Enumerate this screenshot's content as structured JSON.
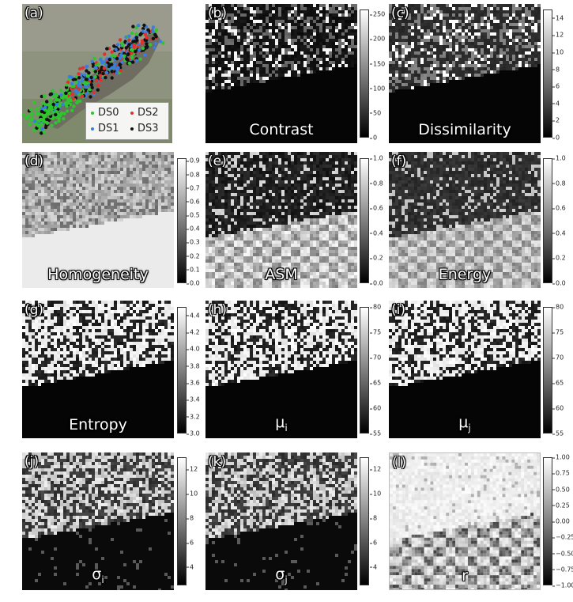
{
  "panels": {
    "a": {
      "label": "(a)",
      "legend": [
        {
          "text": "DS0",
          "color": "#2ec52e"
        },
        {
          "text": "DS2",
          "color": "#e03030"
        },
        {
          "text": "DS1",
          "color": "#3a7de0"
        },
        {
          "text": "DS3",
          "color": "#111111"
        }
      ]
    },
    "b": {
      "label": "(b)",
      "name": "Contrast",
      "ticks": [
        "250",
        "200",
        "150",
        "100",
        "50",
        "0"
      ],
      "ticks_values": [
        250,
        200,
        150,
        100,
        50,
        0
      ],
      "range": [
        0,
        260
      ]
    },
    "c": {
      "label": "(c)",
      "name": "Dissimilarity",
      "ticks": [
        "14",
        "12",
        "10",
        "8",
        "6",
        "4",
        "2",
        "0"
      ],
      "ticks_values": [
        14,
        12,
        10,
        8,
        6,
        4,
        2,
        0
      ],
      "range": [
        0,
        15
      ]
    },
    "d": {
      "label": "(d)",
      "name": "Homogeneity",
      "ticks": [
        "0.9",
        "0.8",
        "0.7",
        "0.6",
        "0.5",
        "0.4",
        "0.3",
        "0.2",
        "0.1",
        "0.0"
      ],
      "ticks_values": [
        0.9,
        0.8,
        0.7,
        0.6,
        0.5,
        0.4,
        0.3,
        0.2,
        0.1,
        0.0
      ],
      "range": [
        0,
        0.92
      ]
    },
    "e": {
      "label": "(e)",
      "name": "ASM",
      "ticks": [
        "1.0",
        "0.8",
        "0.6",
        "0.4",
        "0.2",
        "0.0"
      ],
      "ticks_values": [
        1.0,
        0.8,
        0.6,
        0.4,
        0.2,
        0.0
      ],
      "range": [
        0,
        1.0
      ]
    },
    "f": {
      "label": "(f)",
      "name": "Energy",
      "ticks": [
        "1.0",
        "0.8",
        "0.6",
        "0.4",
        "0.2",
        "0.0"
      ],
      "ticks_values": [
        1.0,
        0.8,
        0.6,
        0.4,
        0.2,
        0.0
      ],
      "range": [
        0,
        1.0
      ]
    },
    "g": {
      "label": "(g)",
      "name": "Entropy",
      "ticks": [
        "4.4",
        "4.2",
        "4.0",
        "3.8",
        "3.6",
        "3.4",
        "3.2",
        "3.0"
      ],
      "ticks_values": [
        4.4,
        4.2,
        4.0,
        3.8,
        3.6,
        3.4,
        3.2,
        3.0
      ],
      "range": [
        3.0,
        4.5
      ]
    },
    "h": {
      "label": "(h)",
      "name_main": "μ",
      "name_sub": "i",
      "ticks": [
        "80",
        "75",
        "70",
        "65",
        "60",
        "55"
      ],
      "ticks_values": [
        80,
        75,
        70,
        65,
        60,
        55
      ],
      "range": [
        55,
        80
      ]
    },
    "i": {
      "label": "(i)",
      "name_main": "μ",
      "name_sub": "j",
      "ticks": [
        "80",
        "75",
        "70",
        "65",
        "60",
        "55"
      ],
      "ticks_values": [
        80,
        75,
        70,
        65,
        60,
        55
      ],
      "range": [
        55,
        80
      ]
    },
    "j": {
      "label": "(j)",
      "name_main": "σ",
      "name_sub": "i",
      "ticks": [
        "12",
        "10",
        "8",
        "6",
        "4"
      ],
      "ticks_values": [
        12,
        10,
        8,
        6,
        4
      ],
      "range": [
        2.5,
        13
      ]
    },
    "k": {
      "label": "(k)",
      "name_main": "σ",
      "name_sub": "j",
      "ticks": [
        "12",
        "10",
        "8",
        "6",
        "4"
      ],
      "ticks_values": [
        12,
        10,
        8,
        6,
        4
      ],
      "range": [
        2.5,
        13
      ]
    },
    "l": {
      "label": "(l)",
      "name": "r",
      "ticks": [
        "1.00",
        "0.75",
        "0.50",
        "0.25",
        "0.00",
        "−0.25",
        "−0.50",
        "−0.75",
        "−1.00"
      ],
      "ticks_values": [
        1.0,
        0.75,
        0.5,
        0.25,
        0.0,
        -0.25,
        -0.5,
        -0.75,
        -1.0
      ],
      "range": [
        -1,
        1
      ]
    }
  }
}
